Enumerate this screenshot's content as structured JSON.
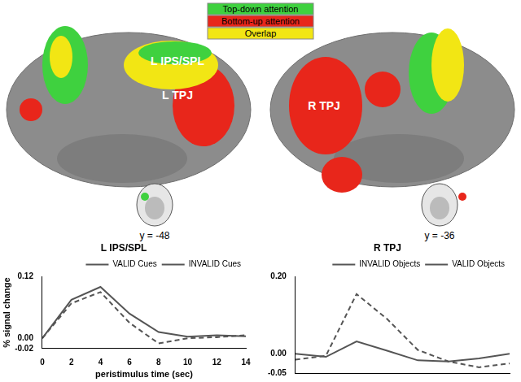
{
  "figure": {
    "legend": [
      {
        "label": "Top-down attention",
        "color": "#3fd13f"
      },
      {
        "label": "Bottom-up attention",
        "color": "#e8261b"
      },
      {
        "label": "Overlap",
        "color": "#f2e614"
      }
    ],
    "brain_labels": [
      "L IPS/SPL",
      "L TPJ",
      "R TPJ"
    ],
    "slice_labels": [
      "y = -48",
      "y = -36"
    ]
  },
  "chart_data": [
    {
      "type": "line",
      "title": "L IPS/SPL",
      "x_label": "peristimulus time (sec)",
      "y_label": "% signal change",
      "x": [
        0,
        2,
        4,
        6,
        8,
        10,
        12,
        14
      ],
      "series": [
        {
          "name": "VALID Cues",
          "color": "#555555",
          "line_style": "solid",
          "values": [
            0,
            0.075,
            0.1,
            0.048,
            0.012,
            0.003,
            0.006,
            0.004
          ]
        },
        {
          "name": "INVALID Cues",
          "color": "#555555",
          "line_style": "dashed",
          "values": [
            0,
            0.068,
            0.09,
            0.03,
            -0.01,
            0,
            0.002,
            0.006
          ]
        }
      ],
      "xlim": [
        0,
        14
      ],
      "xticks": [
        0,
        2,
        4,
        6,
        8,
        10,
        12,
        14
      ],
      "ylim": [
        -0.02,
        0.12
      ],
      "yticks": [
        -0.02,
        {
          "value": 0,
          "label": "0.00"
        },
        0.12
      ],
      "legend": "upper right",
      "grid": false
    },
    {
      "type": "line",
      "title": "R TPJ",
      "x": [
        0,
        2,
        4,
        6,
        8,
        10,
        12,
        14
      ],
      "series": [
        {
          "name": "INVALID Objects",
          "color": "#555555",
          "line_style": "dashed",
          "values": [
            -0.015,
            -0.005,
            0.155,
            0.09,
            0.01,
            -0.02,
            -0.035,
            -0.025
          ]
        },
        {
          "name": "VALID Objects",
          "color": "#555555",
          "line_style": "solid",
          "values": [
            0,
            -0.008,
            0.032,
            0.008,
            -0.017,
            -0.02,
            -0.012,
            0
          ]
        }
      ],
      "xlim": [
        0,
        14
      ],
      "ylim": [
        -0.05,
        0.2
      ],
      "yticks": [
        -0.05,
        {
          "value": 0,
          "label": "0.00"
        },
        {
          "value": 0.2,
          "label": "0.20"
        }
      ],
      "legend": "upper right",
      "grid": false,
      "tick_labels": "y"
    }
  ]
}
